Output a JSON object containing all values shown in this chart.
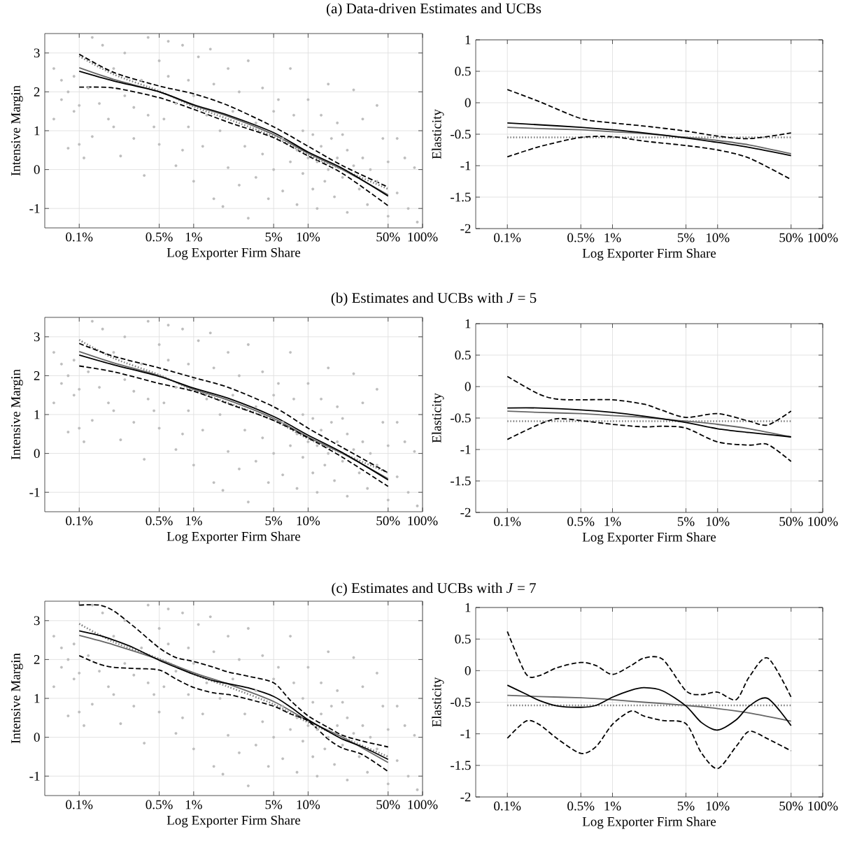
{
  "chart_data": [
    {
      "type": "line",
      "title": "(a) Data-driven Estimates and UCBs",
      "xlabel": "Log Exporter Firm Share",
      "ylabel": "Intensive Margin",
      "log": "x",
      "grid": true,
      "xlim": [
        0.0005,
        1
      ],
      "ylim": [
        -1.5,
        3.5
      ],
      "xticks": [
        {
          "value": 0.001,
          "label": "0.1%"
        },
        {
          "value": 0.005,
          "label": "0.5%"
        },
        {
          "value": 0.01,
          "label": "1%"
        },
        {
          "value": 0.05,
          "label": "5%"
        },
        {
          "value": 0.1,
          "label": "10%"
        },
        {
          "value": 0.5,
          "label": "50%"
        },
        {
          "value": 1,
          "label": "100%"
        }
      ],
      "yticks": [
        -1,
        0,
        1,
        2,
        3
      ],
      "series": [
        {
          "type": "scatter",
          "color": "#bdbdbd",
          "marker": "circle",
          "x": [
            0.0006,
            0.0006,
            0.0007,
            0.0007,
            0.0008,
            0.0008,
            0.0009,
            0.0009,
            0.001,
            0.001,
            0.0011,
            0.0012,
            0.0013,
            0.0013,
            0.0015,
            0.0016,
            0.0018,
            0.002,
            0.002,
            0.0023,
            0.0025,
            0.0025,
            0.003,
            0.003,
            0.0035,
            0.0037,
            0.004,
            0.004,
            0.0045,
            0.005,
            0.005,
            0.0055,
            0.006,
            0.006,
            0.007,
            0.007,
            0.008,
            0.008,
            0.009,
            0.009,
            0.01,
            0.01,
            0.011,
            0.012,
            0.013,
            0.014,
            0.015,
            0.015,
            0.017,
            0.018,
            0.02,
            0.02,
            0.022,
            0.025,
            0.025,
            0.028,
            0.03,
            0.03,
            0.035,
            0.035,
            0.04,
            0.04,
            0.045,
            0.05,
            0.05,
            0.055,
            0.06,
            0.06,
            0.07,
            0.07,
            0.075,
            0.08,
            0.08,
            0.09,
            0.09,
            0.1,
            0.1,
            0.11,
            0.11,
            0.12,
            0.12,
            0.13,
            0.13,
            0.14,
            0.15,
            0.15,
            0.16,
            0.17,
            0.18,
            0.18,
            0.2,
            0.2,
            0.22,
            0.22,
            0.25,
            0.25,
            0.28,
            0.3,
            0.3,
            0.33,
            0.35,
            0.4,
            0.4,
            0.45,
            0.5,
            0.5,
            0.6,
            0.6,
            0.7,
            0.75,
            0.85,
            0.9
          ],
          "values": [
            2.6,
            1.3,
            2.3,
            1.8,
            0.55,
            2.0,
            1.5,
            2.4,
            0.65,
            1.65,
            0.3,
            2.1,
            3.4,
            0.85,
            1.7,
            3.2,
            1.3,
            1.1,
            2.6,
            0.35,
            1.9,
            3.0,
            1.6,
            0.8,
            2.3,
            -0.15,
            1.4,
            3.4,
            1.1,
            2.8,
            0.65,
            1.3,
            3.3,
            2.4,
            0.1,
            1.7,
            3.2,
            0.5,
            1.1,
            2.3,
            -0.3,
            1.9,
            2.9,
            0.6,
            1.4,
            3.1,
            -0.75,
            2.2,
            1.0,
            -0.95,
            0.05,
            2.6,
            1.5,
            -0.4,
            2.0,
            0.6,
            2.8,
            -1.25,
            1.2,
            -0.2,
            2.1,
            0.4,
            -0.75,
            1.5,
            0.0,
            1.8,
            -0.55,
            0.8,
            2.6,
            0.2,
            1.4,
            -0.9,
            0.5,
            1.0,
            -0.1,
            0.3,
            1.8,
            -0.5,
            0.9,
            0.2,
            -1.0,
            1.4,
            0.6,
            -0.3,
            2.2,
            0.0,
            0.8,
            -0.7,
            1.2,
            0.3,
            -0.2,
            0.9,
            -1.1,
            0.5,
            2.05,
            0.1,
            -0.5,
            1.3,
            0.3,
            -0.9,
            0.0,
            1.65,
            -0.3,
            0.8,
            -1.2,
            0.2,
            0.8,
            -0.6,
            0.3,
            -1.0,
            0.05,
            -1.35
          ]
        },
        {
          "color": "#666666",
          "line_style": "solid",
          "x": [
            0.001,
            0.002,
            0.005,
            0.01,
            0.02,
            0.05,
            0.1,
            0.2,
            0.5
          ],
          "values": [
            2.62,
            2.32,
            2.0,
            1.65,
            1.37,
            0.9,
            0.42,
            0.0,
            -0.65
          ]
        },
        {
          "color": "#808080",
          "line_style": "dotted",
          "x": [
            0.001,
            0.002,
            0.005,
            0.01,
            0.02,
            0.05,
            0.1,
            0.2,
            0.5
          ],
          "values": [
            2.92,
            2.45,
            2.02,
            1.62,
            1.3,
            0.85,
            0.38,
            0.0,
            -0.5
          ]
        },
        {
          "color": "#000000",
          "line_style": "dashed",
          "x": [
            0.001,
            0.002,
            0.005,
            0.01,
            0.02,
            0.05,
            0.1,
            0.2,
            0.5
          ],
          "values": [
            2.97,
            2.5,
            2.15,
            1.95,
            1.65,
            1.1,
            0.6,
            0.1,
            -0.45
          ]
        },
        {
          "color": "#000000",
          "line_style": "dashed",
          "x": [
            0.001,
            0.002,
            0.005,
            0.01,
            0.02,
            0.05,
            0.1,
            0.2,
            0.5
          ],
          "values": [
            2.12,
            2.1,
            1.85,
            1.55,
            1.22,
            0.82,
            0.35,
            -0.1,
            -0.93
          ]
        },
        {
          "color": "#000000",
          "line_style": "solid",
          "x": [
            0.001,
            0.002,
            0.005,
            0.01,
            0.02,
            0.05,
            0.1,
            0.2,
            0.5
          ],
          "values": [
            2.53,
            2.28,
            2.0,
            1.67,
            1.4,
            0.95,
            0.45,
            0.03,
            -0.68
          ]
        }
      ]
    },
    {
      "type": "line",
      "xlabel": "Log Exporter Firm Share",
      "ylabel": "Elasticity",
      "log": "x",
      "grid": true,
      "xlim": [
        0.0005,
        1
      ],
      "ylim": [
        -2,
        1
      ],
      "xticks": [
        {
          "value": 0.001,
          "label": "0.1%"
        },
        {
          "value": 0.005,
          "label": "0.5%"
        },
        {
          "value": 0.01,
          "label": "1%"
        },
        {
          "value": 0.05,
          "label": "5%"
        },
        {
          "value": 0.1,
          "label": "10%"
        },
        {
          "value": 0.5,
          "label": "50%"
        },
        {
          "value": 1,
          "label": "100%"
        }
      ],
      "yticks": [
        -2,
        -1.5,
        -1,
        -0.5,
        0,
        0.5,
        1
      ],
      "series": [
        {
          "color": "#666666",
          "line_style": "solid",
          "x": [
            0.001,
            0.002,
            0.005,
            0.01,
            0.02,
            0.05,
            0.1,
            0.2,
            0.5
          ],
          "values": [
            -0.39,
            -0.41,
            -0.43,
            -0.46,
            -0.49,
            -0.55,
            -0.6,
            -0.67,
            -0.81
          ]
        },
        {
          "color": "#808080",
          "line_style": "dotted",
          "x": [
            0.001,
            0.5
          ],
          "values": [
            -0.55,
            -0.55
          ]
        },
        {
          "color": "#000000",
          "line_style": "dashed",
          "x": [
            0.001,
            0.002,
            0.005,
            0.01,
            0.02,
            0.05,
            0.1,
            0.2,
            0.5
          ],
          "values": [
            0.21,
            0.02,
            -0.25,
            -0.32,
            -0.37,
            -0.45,
            -0.53,
            -0.57,
            -0.48
          ]
        },
        {
          "color": "#000000",
          "line_style": "dashed",
          "x": [
            0.001,
            0.002,
            0.005,
            0.01,
            0.02,
            0.05,
            0.1,
            0.2,
            0.5
          ],
          "values": [
            -0.86,
            -0.7,
            -0.55,
            -0.54,
            -0.61,
            -0.68,
            -0.75,
            -0.88,
            -1.22
          ]
        },
        {
          "color": "#000000",
          "line_style": "solid",
          "x": [
            0.001,
            0.002,
            0.005,
            0.01,
            0.02,
            0.05,
            0.1,
            0.2,
            0.5
          ],
          "values": [
            -0.32,
            -0.35,
            -0.39,
            -0.43,
            -0.48,
            -0.56,
            -0.63,
            -0.71,
            -0.84
          ]
        }
      ]
    },
    {
      "type": "line",
      "title": "(b) Estimates and UCBs with *J* = 5",
      "xlabel": "Log Exporter Firm Share",
      "ylabel": "Intensive Margin",
      "log": "x",
      "grid": true,
      "xlim": [
        0.0005,
        1
      ],
      "ylim": [
        -1.5,
        3.5
      ],
      "xticks": [
        {
          "value": 0.001,
          "label": "0.1%"
        },
        {
          "value": 0.005,
          "label": "0.5%"
        },
        {
          "value": 0.01,
          "label": "1%"
        },
        {
          "value": 0.05,
          "label": "5%"
        },
        {
          "value": 0.1,
          "label": "10%"
        },
        {
          "value": 0.5,
          "label": "50%"
        },
        {
          "value": 1,
          "label": "100%"
        }
      ],
      "yticks": [
        -1,
        0,
        1,
        2,
        3
      ],
      "series": [
        {
          "type": "scatter",
          "color": "#bdbdbd",
          "marker": "circle",
          "x": [
            0.0006,
            0.0006,
            0.0007,
            0.0007,
            0.0008,
            0.0008,
            0.0009,
            0.0009,
            0.001,
            0.001,
            0.0011,
            0.0012,
            0.0013,
            0.0013,
            0.0015,
            0.0016,
            0.0018,
            0.002,
            0.002,
            0.0023,
            0.0025,
            0.0025,
            0.003,
            0.003,
            0.0035,
            0.0037,
            0.004,
            0.004,
            0.0045,
            0.005,
            0.005,
            0.0055,
            0.006,
            0.006,
            0.007,
            0.007,
            0.008,
            0.008,
            0.009,
            0.009,
            0.01,
            0.01,
            0.011,
            0.012,
            0.013,
            0.014,
            0.015,
            0.015,
            0.017,
            0.018,
            0.02,
            0.02,
            0.022,
            0.025,
            0.025,
            0.028,
            0.03,
            0.03,
            0.035,
            0.035,
            0.04,
            0.04,
            0.045,
            0.05,
            0.05,
            0.055,
            0.06,
            0.06,
            0.07,
            0.07,
            0.075,
            0.08,
            0.08,
            0.09,
            0.09,
            0.1,
            0.1,
            0.11,
            0.11,
            0.12,
            0.12,
            0.13,
            0.13,
            0.14,
            0.15,
            0.15,
            0.16,
            0.17,
            0.18,
            0.18,
            0.2,
            0.2,
            0.22,
            0.22,
            0.25,
            0.25,
            0.28,
            0.3,
            0.3,
            0.33,
            0.35,
            0.4,
            0.4,
            0.45,
            0.5,
            0.5,
            0.6,
            0.6,
            0.7,
            0.75,
            0.85,
            0.9
          ],
          "values": [
            2.6,
            1.3,
            2.3,
            1.8,
            0.55,
            2.0,
            1.5,
            2.4,
            0.65,
            1.65,
            0.3,
            2.1,
            3.4,
            0.85,
            1.7,
            3.2,
            1.3,
            1.1,
            2.6,
            0.35,
            1.9,
            3.0,
            1.6,
            0.8,
            2.3,
            -0.15,
            1.4,
            3.4,
            1.1,
            2.8,
            0.65,
            1.3,
            3.3,
            2.4,
            0.1,
            1.7,
            3.2,
            0.5,
            1.1,
            2.3,
            -0.3,
            1.9,
            2.9,
            0.6,
            1.4,
            3.1,
            -0.75,
            2.2,
            1.0,
            -0.95,
            0.05,
            2.6,
            1.5,
            -0.4,
            2.0,
            0.6,
            2.8,
            -1.25,
            1.2,
            -0.2,
            2.1,
            0.4,
            -0.75,
            1.5,
            0.0,
            1.8,
            -0.55,
            0.8,
            2.6,
            0.2,
            1.4,
            -0.9,
            0.5,
            1.0,
            -0.1,
            0.3,
            1.8,
            -0.5,
            0.9,
            0.2,
            -1.0,
            1.4,
            0.6,
            -0.3,
            2.2,
            0.0,
            0.8,
            -0.7,
            1.2,
            0.3,
            -0.2,
            0.9,
            -1.1,
            0.5,
            2.05,
            0.1,
            -0.5,
            1.3,
            0.3,
            -0.9,
            0.0,
            1.65,
            -0.3,
            0.8,
            -1.2,
            0.2,
            0.8,
            -0.6,
            0.3,
            -1.0,
            0.05,
            -1.35
          ]
        },
        {
          "color": "#666666",
          "line_style": "solid",
          "x": [
            0.001,
            0.002,
            0.005,
            0.01,
            0.02,
            0.05,
            0.1,
            0.2,
            0.5
          ],
          "values": [
            2.62,
            2.33,
            2.0,
            1.65,
            1.37,
            0.9,
            0.42,
            0.0,
            -0.65
          ]
        },
        {
          "color": "#808080",
          "line_style": "dotted",
          "x": [
            0.001,
            0.002,
            0.005,
            0.01,
            0.02,
            0.05,
            0.1,
            0.2,
            0.5
          ],
          "values": [
            2.92,
            2.45,
            2.02,
            1.62,
            1.3,
            0.85,
            0.38,
            0.0,
            -0.5
          ]
        },
        {
          "color": "#000000",
          "line_style": "dashed",
          "x": [
            0.001,
            0.002,
            0.005,
            0.01,
            0.02,
            0.05,
            0.1,
            0.2,
            0.5
          ],
          "values": [
            2.83,
            2.5,
            2.2,
            1.95,
            1.7,
            1.2,
            0.65,
            0.15,
            -0.5
          ]
        },
        {
          "color": "#000000",
          "line_style": "dashed",
          "x": [
            0.001,
            0.002,
            0.005,
            0.01,
            0.02,
            0.05,
            0.1,
            0.2,
            0.5
          ],
          "values": [
            2.25,
            2.1,
            1.8,
            1.6,
            1.28,
            0.85,
            0.4,
            -0.1,
            -0.85
          ]
        },
        {
          "color": "#000000",
          "line_style": "solid",
          "x": [
            0.001,
            0.002,
            0.005,
            0.01,
            0.02,
            0.05,
            0.1,
            0.2,
            0.5
          ],
          "values": [
            2.53,
            2.28,
            1.98,
            1.68,
            1.42,
            0.95,
            0.47,
            0.02,
            -0.68
          ]
        }
      ]
    },
    {
      "type": "line",
      "xlabel": "Log Exporter Firm Share",
      "ylabel": "Elasticity",
      "log": "x",
      "grid": true,
      "xlim": [
        0.0005,
        1
      ],
      "ylim": [
        -2,
        1
      ],
      "xticks": [
        {
          "value": 0.001,
          "label": "0.1%"
        },
        {
          "value": 0.005,
          "label": "0.5%"
        },
        {
          "value": 0.01,
          "label": "1%"
        },
        {
          "value": 0.05,
          "label": "5%"
        },
        {
          "value": 0.1,
          "label": "10%"
        },
        {
          "value": 0.5,
          "label": "50%"
        },
        {
          "value": 1,
          "label": "100%"
        }
      ],
      "yticks": [
        -2,
        -1.5,
        -1,
        -0.5,
        0,
        0.5,
        1
      ],
      "series": [
        {
          "color": "#666666",
          "line_style": "solid",
          "x": [
            0.001,
            0.002,
            0.005,
            0.01,
            0.02,
            0.05,
            0.1,
            0.2,
            0.5
          ],
          "values": [
            -0.39,
            -0.41,
            -0.43,
            -0.46,
            -0.49,
            -0.55,
            -0.6,
            -0.67,
            -0.8
          ]
        },
        {
          "color": "#808080",
          "line_style": "dotted",
          "x": [
            0.001,
            0.5
          ],
          "values": [
            -0.55,
            -0.55
          ]
        },
        {
          "color": "#000000",
          "line_style": "dashed",
          "x": [
            0.001,
            0.002,
            0.003,
            0.005,
            0.01,
            0.02,
            0.03,
            0.05,
            0.1,
            0.2,
            0.3,
            0.5
          ],
          "values": [
            0.16,
            -0.12,
            -0.2,
            -0.21,
            -0.21,
            -0.28,
            -0.38,
            -0.49,
            -0.43,
            -0.55,
            -0.61,
            -0.39
          ]
        },
        {
          "color": "#000000",
          "line_style": "dashed",
          "x": [
            0.001,
            0.002,
            0.003,
            0.005,
            0.01,
            0.02,
            0.03,
            0.05,
            0.1,
            0.2,
            0.3,
            0.5
          ],
          "values": [
            -0.84,
            -0.6,
            -0.51,
            -0.54,
            -0.6,
            -0.64,
            -0.63,
            -0.66,
            -0.88,
            -0.93,
            -0.92,
            -1.19
          ]
        },
        {
          "color": "#000000",
          "line_style": "solid",
          "x": [
            0.001,
            0.002,
            0.005,
            0.01,
            0.02,
            0.05,
            0.1,
            0.2,
            0.5
          ],
          "values": [
            -0.34,
            -0.34,
            -0.37,
            -0.41,
            -0.47,
            -0.57,
            -0.67,
            -0.73,
            -0.8
          ]
        }
      ]
    },
    {
      "type": "line",
      "title": "(c) Estimates and UCBs with *J* = 7",
      "xlabel": "Log Exporter Firm Share",
      "ylabel": "Intensive Margin",
      "log": "x",
      "grid": true,
      "xlim": [
        0.0005,
        1
      ],
      "ylim": [
        -1.5,
        3.5
      ],
      "xticks": [
        {
          "value": 0.001,
          "label": "0.1%"
        },
        {
          "value": 0.005,
          "label": "0.5%"
        },
        {
          "value": 0.01,
          "label": "1%"
        },
        {
          "value": 0.05,
          "label": "5%"
        },
        {
          "value": 0.1,
          "label": "10%"
        },
        {
          "value": 0.5,
          "label": "50%"
        },
        {
          "value": 1,
          "label": "100%"
        }
      ],
      "yticks": [
        -1,
        0,
        1,
        2,
        3
      ],
      "series": [
        {
          "type": "scatter",
          "color": "#bdbdbd",
          "marker": "circle",
          "x": [
            0.0006,
            0.0006,
            0.0007,
            0.0007,
            0.0008,
            0.0008,
            0.0009,
            0.0009,
            0.001,
            0.001,
            0.0011,
            0.0012,
            0.0013,
            0.0013,
            0.0015,
            0.0016,
            0.0018,
            0.002,
            0.002,
            0.0023,
            0.0025,
            0.0025,
            0.003,
            0.003,
            0.0035,
            0.0037,
            0.004,
            0.004,
            0.0045,
            0.005,
            0.005,
            0.0055,
            0.006,
            0.006,
            0.007,
            0.007,
            0.008,
            0.008,
            0.009,
            0.009,
            0.01,
            0.01,
            0.011,
            0.012,
            0.013,
            0.014,
            0.015,
            0.015,
            0.017,
            0.018,
            0.02,
            0.02,
            0.022,
            0.025,
            0.025,
            0.028,
            0.03,
            0.03,
            0.035,
            0.035,
            0.04,
            0.04,
            0.045,
            0.05,
            0.05,
            0.055,
            0.06,
            0.06,
            0.07,
            0.07,
            0.075,
            0.08,
            0.08,
            0.09,
            0.09,
            0.1,
            0.1,
            0.11,
            0.11,
            0.12,
            0.12,
            0.13,
            0.13,
            0.14,
            0.15,
            0.15,
            0.16,
            0.17,
            0.18,
            0.18,
            0.2,
            0.2,
            0.22,
            0.22,
            0.25,
            0.25,
            0.28,
            0.3,
            0.3,
            0.33,
            0.35,
            0.4,
            0.4,
            0.45,
            0.5,
            0.5,
            0.6,
            0.6,
            0.7,
            0.75,
            0.85,
            0.9
          ],
          "values": [
            2.6,
            1.3,
            2.3,
            1.8,
            0.55,
            2.0,
            1.5,
            2.4,
            0.65,
            1.65,
            0.3,
            2.1,
            3.4,
            0.85,
            1.7,
            3.2,
            1.3,
            1.1,
            2.6,
            0.35,
            1.9,
            3.0,
            1.6,
            0.8,
            2.3,
            -0.15,
            1.4,
            3.4,
            1.1,
            2.8,
            0.65,
            1.3,
            3.3,
            2.4,
            0.1,
            1.7,
            3.2,
            0.5,
            1.1,
            2.3,
            -0.3,
            1.9,
            2.9,
            0.6,
            1.4,
            3.1,
            -0.75,
            2.2,
            1.0,
            -0.95,
            0.05,
            2.6,
            1.5,
            -0.4,
            2.0,
            0.6,
            2.8,
            -1.25,
            1.2,
            -0.2,
            2.1,
            0.4,
            -0.75,
            1.5,
            0.0,
            1.8,
            -0.55,
            0.8,
            2.6,
            0.2,
            1.4,
            -0.9,
            0.5,
            1.0,
            -0.1,
            0.3,
            1.8,
            -0.5,
            0.9,
            0.2,
            -1.0,
            1.4,
            0.6,
            -0.3,
            2.2,
            0.0,
            0.8,
            -0.7,
            1.2,
            0.3,
            -0.2,
            0.9,
            -1.1,
            0.5,
            2.05,
            0.1,
            -0.5,
            1.3,
            0.3,
            -0.9,
            0.0,
            1.65,
            -0.3,
            0.8,
            -1.2,
            0.2,
            0.8,
            -0.6,
            0.3,
            -1.0,
            0.05,
            -1.35
          ]
        },
        {
          "color": "#666666",
          "line_style": "solid",
          "x": [
            0.001,
            0.002,
            0.005,
            0.01,
            0.02,
            0.05,
            0.1,
            0.2,
            0.5
          ],
          "values": [
            2.62,
            2.38,
            2.0,
            1.66,
            1.37,
            0.92,
            0.42,
            0.0,
            -0.65
          ]
        },
        {
          "color": "#808080",
          "line_style": "dotted",
          "x": [
            0.001,
            0.002,
            0.005,
            0.01,
            0.02,
            0.05,
            0.1,
            0.2,
            0.5
          ],
          "values": [
            2.92,
            2.45,
            2.02,
            1.62,
            1.3,
            0.85,
            0.38,
            0.0,
            -0.5
          ]
        },
        {
          "color": "#000000",
          "line_style": "dashed",
          "x": [
            0.001,
            0.0015,
            0.002,
            0.003,
            0.005,
            0.007,
            0.01,
            0.015,
            0.02,
            0.03,
            0.05,
            0.07,
            0.1,
            0.15,
            0.2,
            0.3,
            0.5
          ],
          "values": [
            3.4,
            3.4,
            3.25,
            2.85,
            2.3,
            2.05,
            1.95,
            1.8,
            1.68,
            1.57,
            1.4,
            0.95,
            0.55,
            0.25,
            0.05,
            -0.1,
            -0.25
          ]
        },
        {
          "color": "#000000",
          "line_style": "dashed",
          "x": [
            0.001,
            0.0015,
            0.002,
            0.003,
            0.005,
            0.007,
            0.01,
            0.015,
            0.02,
            0.03,
            0.05,
            0.07,
            0.1,
            0.15,
            0.2,
            0.3,
            0.5
          ],
          "values": [
            2.1,
            1.88,
            1.8,
            1.77,
            1.73,
            1.5,
            1.28,
            1.14,
            1.1,
            0.98,
            0.8,
            0.6,
            0.42,
            -0.05,
            -0.28,
            -0.45,
            -0.88
          ]
        },
        {
          "color": "#000000",
          "line_style": "solid",
          "x": [
            0.001,
            0.0015,
            0.002,
            0.003,
            0.005,
            0.007,
            0.01,
            0.015,
            0.02,
            0.03,
            0.05,
            0.07,
            0.1,
            0.15,
            0.2,
            0.3,
            0.5
          ],
          "values": [
            2.74,
            2.62,
            2.5,
            2.3,
            1.98,
            1.8,
            1.62,
            1.45,
            1.38,
            1.27,
            1.05,
            0.78,
            0.45,
            0.15,
            -0.05,
            -0.25,
            -0.57
          ]
        }
      ]
    },
    {
      "type": "line",
      "xlabel": "Log Exporter Firm Share",
      "ylabel": "Elasticity",
      "log": "x",
      "grid": true,
      "xlim": [
        0.0005,
        1
      ],
      "ylim": [
        -2,
        1
      ],
      "xticks": [
        {
          "value": 0.001,
          "label": "0.1%"
        },
        {
          "value": 0.005,
          "label": "0.5%"
        },
        {
          "value": 0.01,
          "label": "1%"
        },
        {
          "value": 0.05,
          "label": "5%"
        },
        {
          "value": 0.1,
          "label": "10%"
        },
        {
          "value": 0.5,
          "label": "50%"
        },
        {
          "value": 1,
          "label": "100%"
        }
      ],
      "yticks": [
        -2,
        -1.5,
        -1,
        -0.5,
        0,
        0.5,
        1
      ],
      "series": [
        {
          "color": "#666666",
          "line_style": "solid",
          "x": [
            0.001,
            0.002,
            0.005,
            0.01,
            0.02,
            0.05,
            0.1,
            0.2,
            0.5
          ],
          "values": [
            -0.39,
            -0.41,
            -0.43,
            -0.46,
            -0.5,
            -0.55,
            -0.6,
            -0.67,
            -0.8
          ]
        },
        {
          "color": "#808080",
          "line_style": "dotted",
          "x": [
            0.001,
            0.5
          ],
          "values": [
            -0.55,
            -0.55
          ]
        },
        {
          "color": "#000000",
          "line_style": "dashed",
          "x": [
            0.001,
            0.0015,
            0.002,
            0.003,
            0.005,
            0.007,
            0.01,
            0.015,
            0.02,
            0.03,
            0.05,
            0.07,
            0.1,
            0.15,
            0.2,
            0.3,
            0.5
          ],
          "values": [
            0.62,
            -0.05,
            -0.08,
            0.05,
            0.13,
            0.08,
            -0.06,
            0.08,
            0.2,
            0.18,
            -0.32,
            -0.38,
            -0.34,
            -0.46,
            -0.1,
            0.2,
            -0.42
          ]
        },
        {
          "color": "#000000",
          "line_style": "dashed",
          "x": [
            0.001,
            0.0015,
            0.002,
            0.003,
            0.005,
            0.007,
            0.01,
            0.015,
            0.02,
            0.03,
            0.05,
            0.07,
            0.1,
            0.15,
            0.2,
            0.3,
            0.5
          ],
          "values": [
            -1.07,
            -0.8,
            -0.85,
            -1.08,
            -1.31,
            -1.2,
            -0.85,
            -0.64,
            -0.72,
            -0.79,
            -0.84,
            -1.3,
            -1.55,
            -1.2,
            -0.96,
            -1.08,
            -1.27
          ]
        },
        {
          "color": "#000000",
          "line_style": "solid",
          "x": [
            0.001,
            0.0015,
            0.002,
            0.003,
            0.005,
            0.007,
            0.01,
            0.015,
            0.02,
            0.03,
            0.05,
            0.07,
            0.1,
            0.15,
            0.2,
            0.3,
            0.5
          ],
          "values": [
            -0.23,
            -0.37,
            -0.47,
            -0.56,
            -0.58,
            -0.55,
            -0.42,
            -0.31,
            -0.27,
            -0.32,
            -0.56,
            -0.82,
            -0.94,
            -0.78,
            -0.56,
            -0.44,
            -0.87
          ]
        }
      ]
    }
  ]
}
